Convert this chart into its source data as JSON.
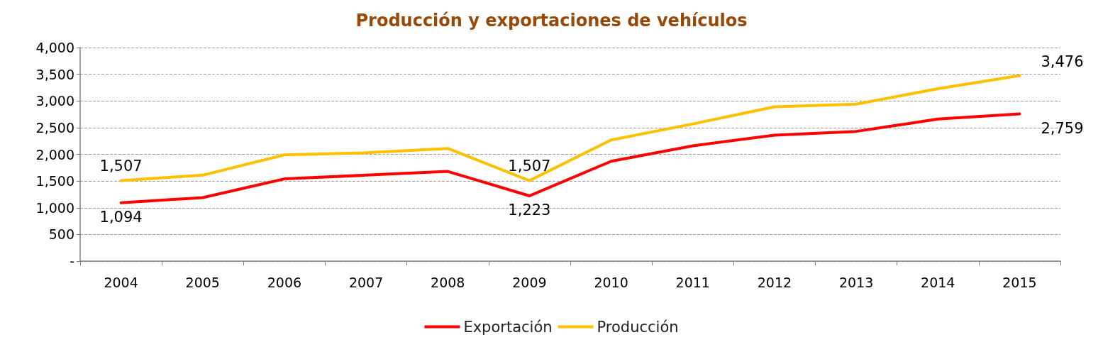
{
  "chart_data": {
    "type": "line",
    "title": "Producción y exportaciones de vehículos",
    "categories": [
      "2004",
      "2005",
      "2006",
      "2007",
      "2008",
      "2009",
      "2010",
      "2011",
      "2012",
      "2013",
      "2014",
      "2015"
    ],
    "series": [
      {
        "name": "Exportación",
        "color": "#ff0000",
        "values": [
          1094,
          1190,
          1540,
          1610,
          1680,
          1223,
          1870,
          2160,
          2360,
          2430,
          2660,
          2759
        ],
        "value_labels": [
          "1,094",
          null,
          null,
          null,
          null,
          "1,223",
          null,
          null,
          null,
          null,
          null,
          "2,759"
        ]
      },
      {
        "name": "Producción",
        "color": "#ffc000",
        "values": [
          1507,
          1610,
          1990,
          2030,
          2110,
          1507,
          2270,
          2570,
          2890,
          2940,
          3230,
          3476
        ],
        "value_labels": [
          "1,507",
          null,
          null,
          null,
          null,
          "1,507",
          null,
          null,
          null,
          null,
          null,
          "3,476"
        ]
      }
    ],
    "ylim": [
      0,
      4000
    ],
    "yticks": [
      {
        "value": 0,
        "label": "-"
      },
      {
        "value": 500,
        "label": "500"
      },
      {
        "value": 1000,
        "label": "1,000"
      },
      {
        "value": 1500,
        "label": "1,500"
      },
      {
        "value": 2000,
        "label": "2,000"
      },
      {
        "value": 2500,
        "label": "2,500"
      },
      {
        "value": 3000,
        "label": "3,000"
      },
      {
        "value": 3500,
        "label": "3,500"
      },
      {
        "value": 4000,
        "label": "4,000"
      }
    ],
    "grid": "y",
    "legend": "bottom",
    "marker": "none",
    "line_style": "solid"
  }
}
